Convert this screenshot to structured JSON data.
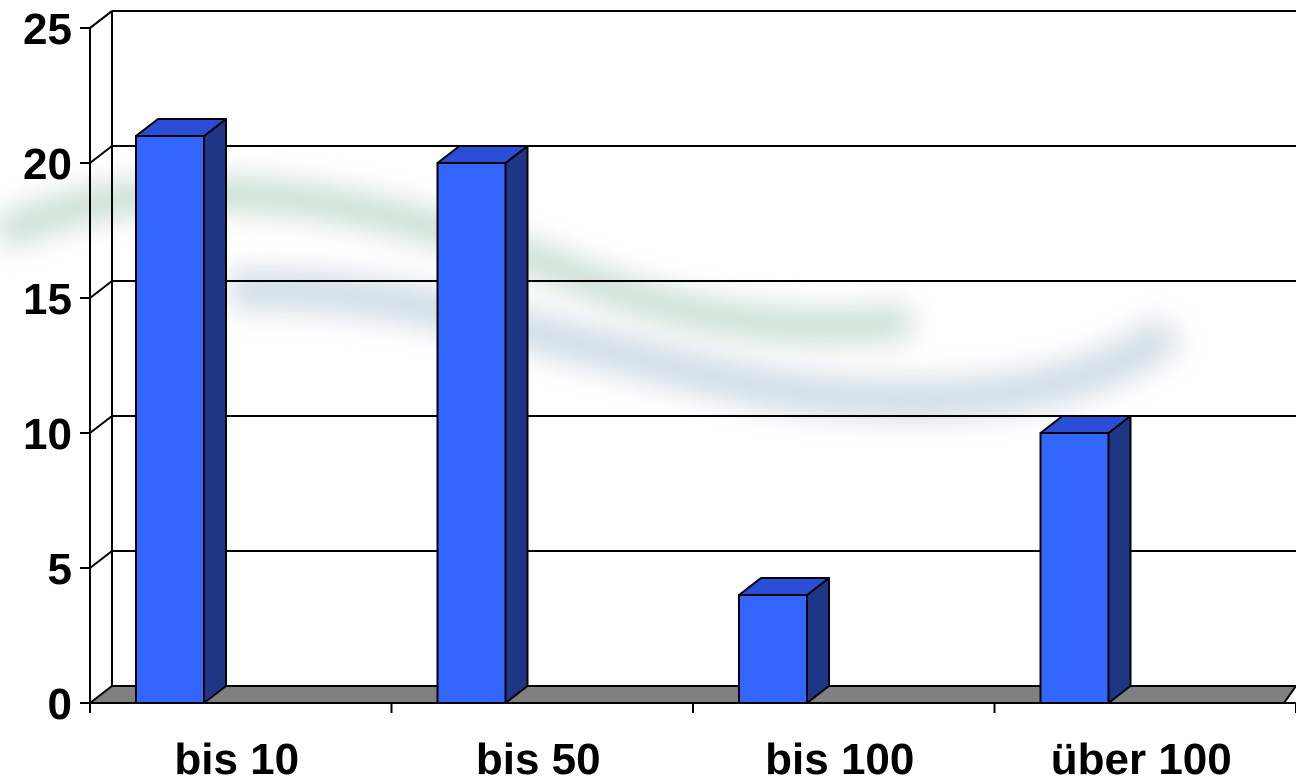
{
  "chart_data": {
    "type": "bar",
    "title": "",
    "xlabel": "",
    "ylabel": "",
    "categories": [
      "bis 10",
      "bis 50",
      "bis 100",
      "über 100"
    ],
    "values": [
      21,
      20,
      4,
      10
    ],
    "ylim": [
      0,
      25
    ],
    "yticks": [
      0,
      5,
      10,
      15,
      20,
      25
    ],
    "grid": true,
    "legend": "none",
    "style": "3d-column",
    "colors": {
      "bar_front": "#3366ff",
      "bar_side": "#1f3585",
      "bar_top": "#2a4fd6",
      "floor": "#808080",
      "gridline": "#000000"
    }
  }
}
